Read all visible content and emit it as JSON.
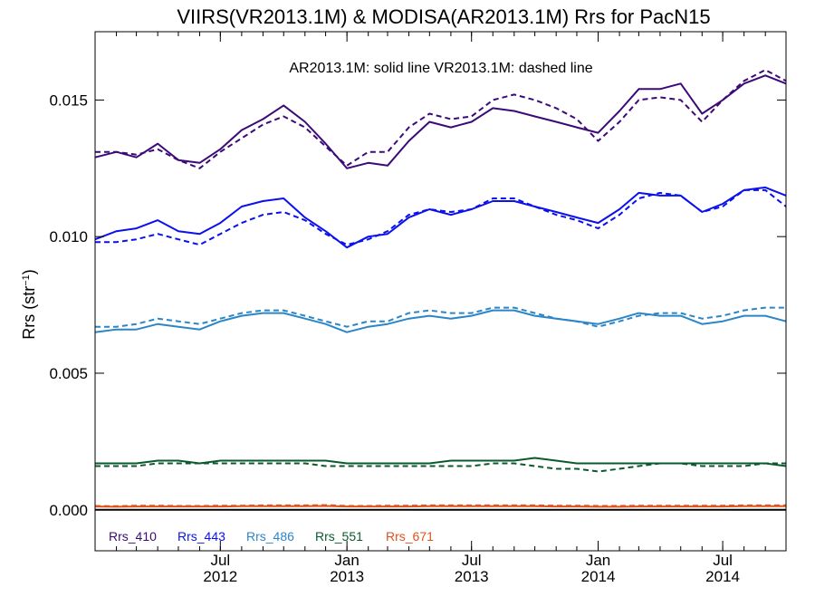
{
  "chart_data": {
    "type": "line",
    "title": "VIIRS(VR2013.1M) & MODISA(AR2013.1M)  Rrs for PacN15",
    "annotation": "AR2013.1M: solid line   VR2013.1M: dashed line",
    "ylabel": "Rrs (str",
    "ylabel_sup": "−1",
    "ylabel_end": ")",
    "xlim": [
      "2012-01-01",
      "2014-10-01"
    ],
    "ylim": [
      -0.0015,
      0.0175
    ],
    "yticks": [
      {
        "value": 0.0,
        "label": "0.000"
      },
      {
        "value": 0.005,
        "label": "0.005"
      },
      {
        "value": 0.01,
        "label": "0.010"
      },
      {
        "value": 0.015,
        "label": "0.015"
      }
    ],
    "xticks": [
      {
        "date": "2012-07-01",
        "month": "Jul",
        "year": "2012"
      },
      {
        "date": "2013-01-01",
        "month": "Jan",
        "year": "2013"
      },
      {
        "date": "2013-07-01",
        "month": "Jul",
        "year": "2013"
      },
      {
        "date": "2014-01-01",
        "month": "Jan",
        "year": "2014"
      },
      {
        "date": "2014-07-01",
        "month": "Jul",
        "year": "2014"
      }
    ],
    "dates": [
      "2012-01-01",
      "2012-02-01",
      "2012-03-01",
      "2012-04-01",
      "2012-05-01",
      "2012-06-01",
      "2012-07-01",
      "2012-08-01",
      "2012-09-01",
      "2012-10-01",
      "2012-11-01",
      "2012-12-01",
      "2013-01-01",
      "2013-02-01",
      "2013-03-01",
      "2013-04-01",
      "2013-05-01",
      "2013-06-01",
      "2013-07-01",
      "2013-08-01",
      "2013-09-01",
      "2013-10-01",
      "2013-11-01",
      "2013-12-01",
      "2014-01-01",
      "2014-02-01",
      "2014-03-01",
      "2014-04-01",
      "2014-05-01",
      "2014-06-01",
      "2014-07-01",
      "2014-08-01",
      "2014-09-01",
      "2014-10-01"
    ],
    "series": [
      {
        "name": "Rrs_410",
        "color": "#3c0a78",
        "solid": [
          0.0129,
          0.0131,
          0.0129,
          0.0134,
          0.0128,
          0.0127,
          0.0132,
          0.0139,
          0.0143,
          0.0148,
          0.0142,
          0.0134,
          0.0125,
          0.0127,
          0.0126,
          0.0135,
          0.0142,
          0.014,
          0.0142,
          0.0147,
          0.0146,
          0.0144,
          0.0142,
          0.014,
          0.0138,
          0.0146,
          0.0154,
          0.0154,
          0.0156,
          0.0145,
          0.015,
          0.0156,
          0.0159,
          0.0156
        ],
        "dashed": [
          0.0131,
          0.0131,
          0.013,
          0.0132,
          0.0128,
          0.0125,
          0.0131,
          0.0136,
          0.0141,
          0.0144,
          0.014,
          0.0133,
          0.0126,
          0.0131,
          0.0131,
          0.014,
          0.0145,
          0.0143,
          0.0144,
          0.015,
          0.0152,
          0.015,
          0.0147,
          0.0143,
          0.0135,
          0.0142,
          0.015,
          0.0151,
          0.015,
          0.0142,
          0.015,
          0.0157,
          0.0161,
          0.0157
        ]
      },
      {
        "name": "Rrs_443",
        "color": "#0a10ee",
        "solid": [
          0.0099,
          0.0102,
          0.0103,
          0.0106,
          0.0102,
          0.0101,
          0.0105,
          0.0111,
          0.0113,
          0.0114,
          0.0107,
          0.0102,
          0.0096,
          0.01,
          0.0101,
          0.0107,
          0.011,
          0.0108,
          0.011,
          0.0113,
          0.0113,
          0.0111,
          0.0109,
          0.0107,
          0.0105,
          0.011,
          0.0116,
          0.0115,
          0.0115,
          0.0109,
          0.0112,
          0.0117,
          0.0118,
          0.0115
        ],
        "dashed": [
          0.0098,
          0.0098,
          0.0099,
          0.0101,
          0.0099,
          0.0097,
          0.0101,
          0.0105,
          0.0108,
          0.0109,
          0.0106,
          0.0101,
          0.0097,
          0.0099,
          0.0102,
          0.0108,
          0.011,
          0.0109,
          0.011,
          0.0114,
          0.0114,
          0.0111,
          0.0108,
          0.0106,
          0.0103,
          0.0108,
          0.0114,
          0.0116,
          0.0115,
          0.0109,
          0.0111,
          0.0117,
          0.0117,
          0.0111
        ]
      },
      {
        "name": "Rrs_486",
        "color": "#2b86c8",
        "solid": [
          0.0065,
          0.0066,
          0.0066,
          0.0068,
          0.0067,
          0.0066,
          0.0069,
          0.0071,
          0.0072,
          0.0072,
          0.007,
          0.0068,
          0.0065,
          0.0067,
          0.0068,
          0.007,
          0.0071,
          0.007,
          0.0071,
          0.0073,
          0.0073,
          0.0071,
          0.007,
          0.0069,
          0.0068,
          0.007,
          0.0072,
          0.0071,
          0.0071,
          0.0068,
          0.0069,
          0.0071,
          0.0071,
          0.0069
        ],
        "dashed": [
          0.0067,
          0.0067,
          0.0068,
          0.007,
          0.0069,
          0.0068,
          0.007,
          0.0072,
          0.0073,
          0.0073,
          0.0071,
          0.0069,
          0.0067,
          0.0069,
          0.0069,
          0.0072,
          0.0073,
          0.0072,
          0.0072,
          0.0074,
          0.0074,
          0.0072,
          0.007,
          0.0069,
          0.0067,
          0.0069,
          0.0071,
          0.0072,
          0.0072,
          0.007,
          0.0071,
          0.0073,
          0.0074,
          0.0074
        ]
      },
      {
        "name": "Rrs_551",
        "color": "#0a5a2e",
        "solid": [
          0.0017,
          0.0017,
          0.0017,
          0.0018,
          0.0018,
          0.0017,
          0.0018,
          0.0018,
          0.0018,
          0.0018,
          0.0018,
          0.0018,
          0.0017,
          0.0017,
          0.0017,
          0.0017,
          0.0017,
          0.0018,
          0.0018,
          0.0018,
          0.0018,
          0.0019,
          0.0018,
          0.0017,
          0.0017,
          0.0017,
          0.0017,
          0.0017,
          0.0017,
          0.0017,
          0.0017,
          0.0017,
          0.0017,
          0.0016
        ],
        "dashed": [
          0.0016,
          0.0016,
          0.0016,
          0.0017,
          0.0017,
          0.0017,
          0.0017,
          0.0017,
          0.0017,
          0.0017,
          0.0017,
          0.0016,
          0.0016,
          0.0016,
          0.0016,
          0.0016,
          0.0016,
          0.0016,
          0.0016,
          0.0017,
          0.0017,
          0.0016,
          0.0015,
          0.0015,
          0.0014,
          0.0015,
          0.0016,
          0.0017,
          0.0017,
          0.0016,
          0.0016,
          0.0016,
          0.0017,
          0.0017
        ]
      },
      {
        "name": "Rrs_671",
        "color": "#e0521a",
        "solid": [
          0.00012,
          0.00011,
          0.00012,
          0.00012,
          0.00012,
          0.00012,
          0.00012,
          0.00013,
          0.00013,
          0.00013,
          0.00013,
          0.00014,
          0.00012,
          0.00012,
          0.00012,
          0.00012,
          0.00013,
          0.00013,
          0.00013,
          0.00013,
          0.00013,
          0.00013,
          0.00012,
          0.00012,
          0.00011,
          0.00011,
          0.00012,
          0.00012,
          0.00012,
          0.00012,
          0.00012,
          0.00013,
          0.00013,
          0.00013
        ],
        "dashed": [
          0.00014,
          0.00013,
          0.00015,
          0.00015,
          0.00014,
          0.00014,
          0.00015,
          0.00015,
          0.00016,
          0.00016,
          0.00016,
          0.00017,
          0.00014,
          0.00014,
          0.00015,
          0.00015,
          0.00016,
          0.00016,
          0.00016,
          0.00016,
          0.00016,
          0.00016,
          0.00015,
          0.00015,
          0.00014,
          0.00014,
          0.00015,
          0.00015,
          0.00015,
          0.00015,
          0.00015,
          0.00016,
          0.00016,
          0.00016
        ]
      }
    ],
    "zero_line": true,
    "legend_position": "bottom-left",
    "grid": false
  }
}
